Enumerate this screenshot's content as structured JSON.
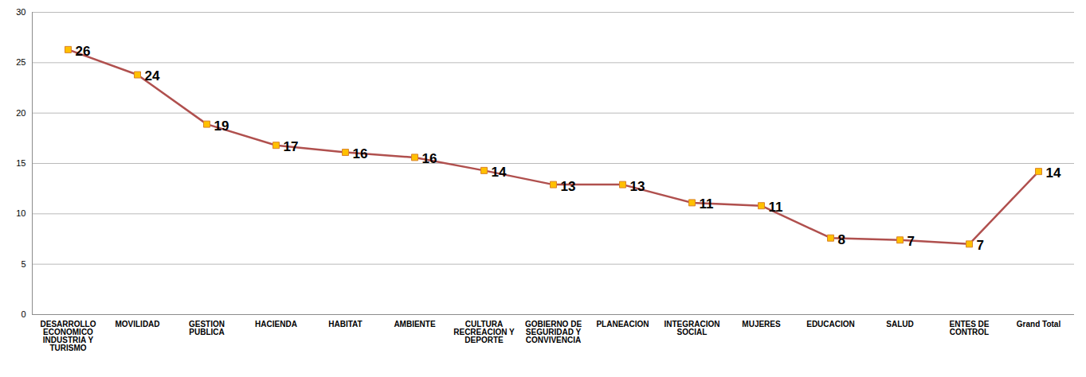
{
  "chart_data": {
    "type": "line",
    "categories": [
      "DESARROLLO ECONOMICO INDUSTRIA Y TURISMO",
      "MOVILIDAD",
      "GESTION PUBLICA",
      "HACIENDA",
      "HABITAT",
      "AMBIENTE",
      "CULTURA RECREACION Y DEPORTE",
      "GOBIERNO DE SEGURIDAD Y CONVIVENCIA",
      "PLANEACION",
      "INTEGRACION SOCIAL",
      "MUJERES",
      "EDUCACION",
      "SALUD",
      "ENTES DE CONTROL",
      "Grand Total"
    ],
    "values": [
      26.3,
      23.8,
      18.9,
      16.8,
      16.1,
      15.6,
      14.3,
      12.9,
      12.9,
      11.1,
      10.8,
      7.6,
      7.4,
      7.0,
      14.2
    ],
    "value_labels": [
      "26",
      "24",
      "19",
      "17",
      "16",
      "16",
      "14",
      "13",
      "13",
      "11",
      "11",
      "8",
      "7",
      "7",
      "14"
    ],
    "color": "#b0504e",
    "marker": "square",
    "ylim": [
      0,
      30
    ],
    "yticks": [
      0,
      5,
      10,
      15,
      20,
      25,
      30
    ],
    "grid": true,
    "data_labels": true
  }
}
